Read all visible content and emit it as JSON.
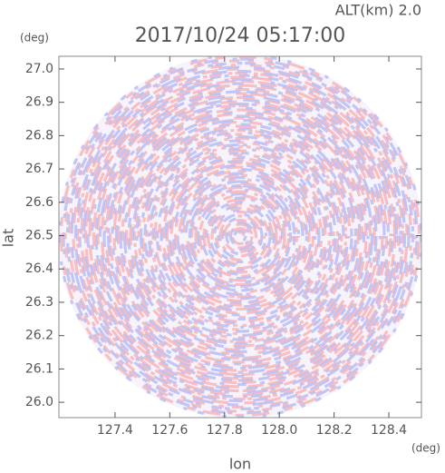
{
  "chart_data": {
    "type": "image",
    "title": "2017/10/24 05:17:00",
    "subtitle": "ALT(km) 2.0",
    "x_label": "lon",
    "x_unit": "(deg)",
    "y_label": "lat",
    "y_unit": "(deg)",
    "xlim": [
      127.195,
      128.519
    ],
    "xticks": [
      127.4,
      127.6,
      127.8,
      {
        "value": 128,
        "label": "128.0"
      },
      128.2,
      128.4
    ],
    "ylim": [
      25.954,
      27.038
    ],
    "yticks": [
      {
        "value": 26,
        "label": "26.0"
      },
      26.1,
      26.2,
      26.3,
      26.4,
      26.5,
      26.6,
      26.7,
      26.8,
      26.9,
      {
        "value": 27,
        "label": "27.0"
      }
    ]
  }
}
